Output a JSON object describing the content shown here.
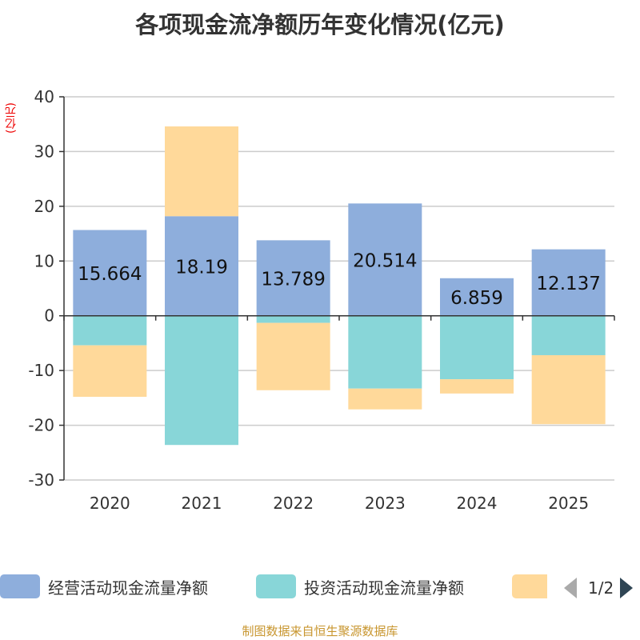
{
  "chart_data": {
    "type": "bar",
    "stacked": true,
    "title": "各项现金流净额历年变化情况(亿元)",
    "ylabel": "(亿元)",
    "categories": [
      "2020",
      "2021",
      "2022",
      "2023",
      "2024",
      "2025"
    ],
    "ylim": [
      -30,
      40
    ],
    "yticks": [
      40,
      30,
      20,
      10,
      0,
      -10,
      -20,
      -30
    ],
    "series": [
      {
        "name": "经营活动现金流量净额",
        "color": "#8eaedc",
        "values": [
          15.664,
          18.19,
          13.789,
          20.514,
          6.859,
          12.137
        ],
        "labels": [
          "15.664",
          "18.19",
          "13.789",
          "20.514",
          "6.859",
          "12.137"
        ]
      },
      {
        "name": "投资活动现金流量净额",
        "color": "#88d6d8",
        "values": [
          -5.4,
          -23.6,
          -1.3,
          -13.3,
          -11.6,
          -7.2
        ]
      },
      {
        "name": "",
        "color": "#ffd99a",
        "values": [
          -9.4,
          16.4,
          -12.3,
          -3.8,
          -2.6,
          -12.6
        ]
      }
    ],
    "legend": {
      "page": "1/2"
    }
  },
  "source": "制图数据来自恒生聚源数据库"
}
